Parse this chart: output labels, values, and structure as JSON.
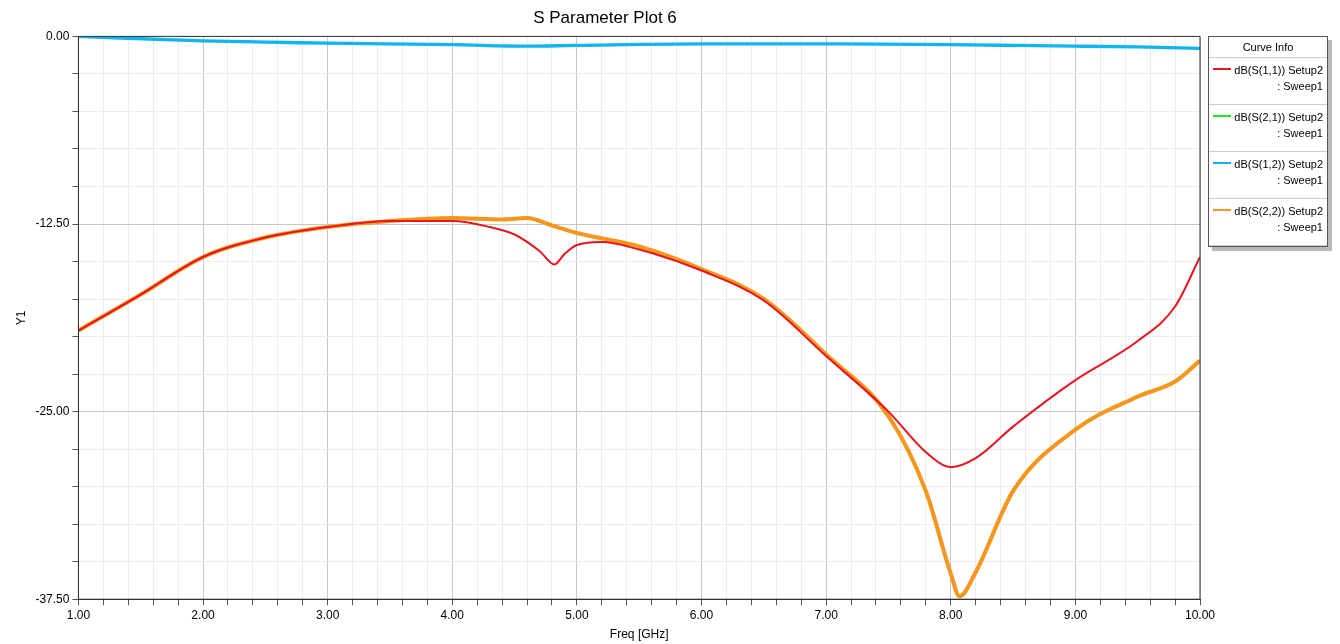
{
  "chart_data": {
    "type": "line",
    "title": "S Parameter Plot 6",
    "xlabel": "Freq [GHz]",
    "ylabel": "Y1",
    "legend_title": "Curve Info",
    "legend": "right",
    "grid": true,
    "marker": "none",
    "line_style": "solid",
    "xlim": [
      1,
      10
    ],
    "ylim": [
      -37.5,
      0
    ],
    "xticks": [
      {
        "value": 1,
        "label": "1.00"
      },
      {
        "value": 1.2,
        "label": null
      },
      {
        "value": 1.4,
        "label": null
      },
      {
        "value": 1.6,
        "label": null
      },
      {
        "value": 1.8,
        "label": null
      },
      {
        "value": 2,
        "label": "2.00"
      },
      {
        "value": 2.2,
        "label": null
      },
      {
        "value": 2.4,
        "label": null
      },
      {
        "value": 2.6,
        "label": null
      },
      {
        "value": 2.8,
        "label": null
      },
      {
        "value": 3,
        "label": "3.00"
      },
      {
        "value": 3.2,
        "label": null
      },
      {
        "value": 3.4,
        "label": null
      },
      {
        "value": 3.6,
        "label": null
      },
      {
        "value": 3.8,
        "label": null
      },
      {
        "value": 4,
        "label": "4.00"
      },
      {
        "value": 4.2,
        "label": null
      },
      {
        "value": 4.4,
        "label": null
      },
      {
        "value": 4.6,
        "label": null
      },
      {
        "value": 4.8,
        "label": null
      },
      {
        "value": 5,
        "label": "5.00"
      },
      {
        "value": 5.2,
        "label": null
      },
      {
        "value": 5.4,
        "label": null
      },
      {
        "value": 5.6,
        "label": null
      },
      {
        "value": 5.8,
        "label": null
      },
      {
        "value": 6,
        "label": "6.00"
      },
      {
        "value": 6.2,
        "label": null
      },
      {
        "value": 6.4,
        "label": null
      },
      {
        "value": 6.6,
        "label": null
      },
      {
        "value": 6.8,
        "label": null
      },
      {
        "value": 7,
        "label": "7.00"
      },
      {
        "value": 7.2,
        "label": null
      },
      {
        "value": 7.4,
        "label": null
      },
      {
        "value": 7.6,
        "label": null
      },
      {
        "value": 7.8,
        "label": null
      },
      {
        "value": 8,
        "label": "8.00"
      },
      {
        "value": 8.2,
        "label": null
      },
      {
        "value": 8.4,
        "label": null
      },
      {
        "value": 8.6,
        "label": null
      },
      {
        "value": 8.8,
        "label": null
      },
      {
        "value": 9,
        "label": "9.00"
      },
      {
        "value": 9.2,
        "label": null
      },
      {
        "value": 9.4,
        "label": null
      },
      {
        "value": 9.6,
        "label": null
      },
      {
        "value": 9.8,
        "label": null
      },
      {
        "value": 10,
        "label": "10.00"
      }
    ],
    "yticks": [
      {
        "value": -37.5,
        "label": "-37.50"
      },
      {
        "value": -35,
        "label": null
      },
      {
        "value": -32.5,
        "label": null
      },
      {
        "value": -30,
        "label": null
      },
      {
        "value": -27.5,
        "label": null
      },
      {
        "value": -25,
        "label": "-25.00"
      },
      {
        "value": -22.5,
        "label": null
      },
      {
        "value": -20,
        "label": null
      },
      {
        "value": -17.5,
        "label": null
      },
      {
        "value": -15,
        "label": null
      },
      {
        "value": -12.5,
        "label": "-12.50"
      },
      {
        "value": -10,
        "label": null
      },
      {
        "value": -7.5,
        "label": null
      },
      {
        "value": -5,
        "label": null
      },
      {
        "value": -2.5,
        "label": null
      },
      {
        "value": 0,
        "label": "0.00"
      }
    ],
    "series": [
      {
        "name": "dB(S(1,1)) Setup2 : Sweep1",
        "color": "#e8141e",
        "x": [
          1,
          1.5,
          2,
          2.5,
          3,
          3.5,
          4,
          4.3,
          4.5,
          4.7,
          4.82,
          4.9,
          5,
          5.2,
          5.5,
          6,
          6.5,
          7,
          7.5,
          7.8,
          8,
          8.2,
          8.5,
          9,
          9.5,
          9.8,
          10
        ],
        "values": [
          -19.6,
          -17.2,
          -14.7,
          -13.4,
          -12.7,
          -12.3,
          -12.3,
          -12.7,
          -13.2,
          -14.3,
          -15.2,
          -14.5,
          -13.9,
          -13.7,
          -14.2,
          -15.6,
          -17.6,
          -21.3,
          -25,
          -27.7,
          -28.7,
          -28.1,
          -26,
          -22.9,
          -20.3,
          -18,
          -14.7
        ]
      },
      {
        "name": "dB(S(2,1)) Setup2 : Sweep1",
        "color": "#1ee81e"
      },
      {
        "name": "dB(S(1,2)) Setup2 : Sweep1",
        "color": "#10b4f0",
        "x": [
          1,
          2,
          3,
          4,
          4.6,
          5,
          6,
          7,
          8,
          9,
          9.5,
          10
        ],
        "values": [
          0,
          -0.3,
          -0.45,
          -0.55,
          -0.65,
          -0.6,
          -0.5,
          -0.5,
          -0.55,
          -0.65,
          -0.7,
          -0.8
        ]
      },
      {
        "name": "dB(S(2,2)) Setup2 : Sweep1",
        "color": "#f5961e",
        "x": [
          1,
          1.5,
          2,
          2.5,
          3,
          3.5,
          4,
          4.4,
          4.6,
          4.8,
          5,
          5.5,
          6,
          6.5,
          7,
          7.5,
          7.8,
          8,
          8.07,
          8.2,
          8.5,
          9,
          9.5,
          9.8,
          10
        ],
        "values": [
          -19.6,
          -17.2,
          -14.7,
          -13.4,
          -12.7,
          -12.3,
          -12.1,
          -12.2,
          -12.1,
          -12.6,
          -13.1,
          -14,
          -15.5,
          -17.5,
          -21.2,
          -25.3,
          -30.3,
          -35.8,
          -37.3,
          -35.7,
          -30.3,
          -26.2,
          -24,
          -23,
          -21.6
        ]
      }
    ]
  }
}
